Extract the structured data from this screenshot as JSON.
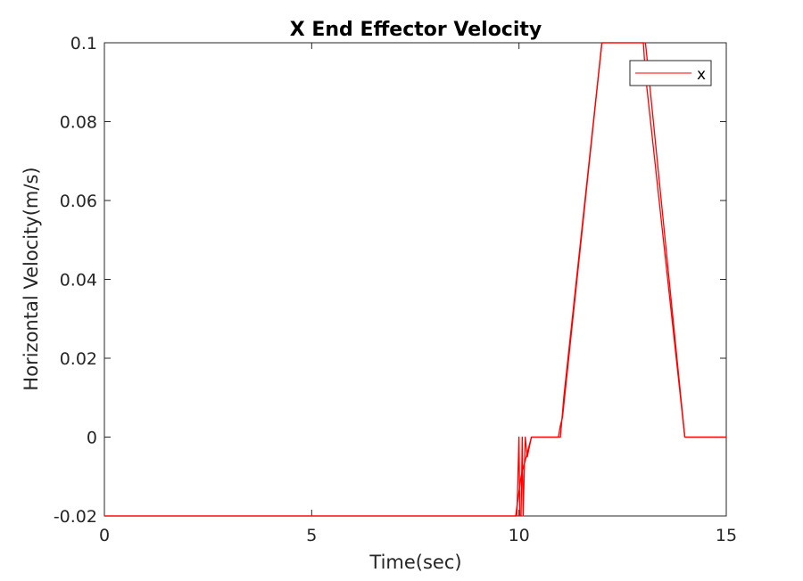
{
  "chart_data": {
    "type": "line",
    "title": "X End Effector Velocity",
    "xlabel": "Time(sec)",
    "ylabel": "Horizontal Velocity(m/s)",
    "xlim": [
      0,
      15
    ],
    "ylim": [
      -0.02,
      0.1
    ],
    "xticks": [
      0,
      5,
      10,
      15
    ],
    "xtick_labels": [
      "0",
      "5",
      "10",
      "15"
    ],
    "yticks": [
      -0.02,
      0,
      0.02,
      0.04,
      0.06,
      0.08,
      0.1
    ],
    "ytick_labels": [
      "-0.02",
      "0",
      "0.02",
      "0.04",
      "0.06",
      "0.08",
      "0.1"
    ],
    "grid": false,
    "legend_position": "top-right",
    "series": [
      {
        "name": "x",
        "color": "#ff0000",
        "x": [
          0,
          9.95,
          10.0,
          10.02,
          10.05,
          10.08,
          10.1,
          10.15,
          10.2,
          10.3,
          10.4,
          10.9,
          10.95,
          11.0,
          11.05,
          11.1,
          12.0,
          12.05,
          13.0,
          13.05,
          13.1,
          14.0,
          14.05,
          15.0
        ],
        "y": [
          -0.02,
          -0.02,
          0.0,
          -0.02,
          -0.02,
          0.0,
          -0.02,
          0.0,
          -0.005,
          0.0,
          0.0,
          0.0,
          0.0,
          0.003,
          0.005,
          0.01,
          0.1,
          0.1,
          0.1,
          0.1,
          0.095,
          0.0,
          0.0,
          0.0
        ]
      },
      {
        "name": "",
        "color": "#ff0000",
        "x": [
          0,
          9.92,
          10.05,
          10.3,
          10.95,
          11.0,
          11.08,
          12.0,
          13.0,
          13.05,
          14.0,
          15.0
        ],
        "y": [
          -0.02,
          -0.02,
          -0.01,
          0.0,
          0.0,
          0.0,
          0.01,
          0.1,
          0.1,
          0.092,
          0.0,
          0.0
        ]
      }
    ]
  }
}
